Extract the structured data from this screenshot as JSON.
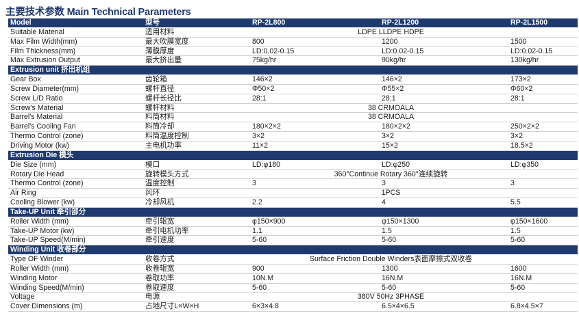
{
  "title": "主要技术参数 Main Technical Parameters",
  "colors": {
    "header_bg": "#1f3a6e",
    "title": "#1f3a6e"
  },
  "header": [
    "Model",
    "型号",
    "RP-2L800",
    "RP-2L1200",
    "RP-2L1500"
  ],
  "rows": [
    {
      "en": "Suitable Material",
      "cn": "适用材料",
      "merged": "LDPE LLDPE HDPE"
    },
    {
      "en": "Max Film Width(mm)",
      "cn": "最大吹膜宽度",
      "v": [
        "800",
        "1200",
        "1500"
      ]
    },
    {
      "en": "Film Thickness(mm)",
      "cn": "薄膜厚度",
      "v": [
        "LD:0.02-0.15",
        "LD:0.02-0.15",
        "LD:0.02-0.15"
      ]
    },
    {
      "en": "Max Extrusion Output",
      "cn": "最大挤出量",
      "v": [
        "75kg/hr",
        "90kg/hr",
        "130kg/hr"
      ]
    },
    {
      "section": "Extrusion unit   挤出机组"
    },
    {
      "en": "Gear Box",
      "cn": "齿轮箱",
      "v": [
        "146×2",
        "146×2",
        "173×2"
      ]
    },
    {
      "en": "Screw Diameter(mm)",
      "cn": "螺杆直径",
      "v": [
        "Φ50×2",
        "Φ55×2",
        "Φ60×2"
      ]
    },
    {
      "en": "Screw L/D Ratio",
      "cn": "螺杆长径比",
      "v": [
        "28:1",
        "28:1",
        "28:1"
      ]
    },
    {
      "en": "Screw's Material",
      "cn": "螺杆材料",
      "merged": "38 CRMOALA"
    },
    {
      "en": "Barrel's Material",
      "cn": "料筒材料",
      "merged": "38 CRMOALA"
    },
    {
      "en": "Barrel's Cooling Fan",
      "cn": "料筒冷却",
      "v": [
        "180×2×2",
        "180×2×2",
        "250×2×2"
      ]
    },
    {
      "en": "Thermo Control (zone)",
      "cn": "料筒温度控制",
      "v": [
        "3×2",
        "3×2",
        "3×2"
      ]
    },
    {
      "en": "Driving Motor (kw)",
      "cn": "主电机功率",
      "v": [
        "11×2",
        "15×2",
        "18.5×2"
      ]
    },
    {
      "section": "Extrusion Die    模头"
    },
    {
      "en": "Die Size (mm)",
      "cn": "模口",
      "v": [
        "LD:φ180",
        "LD:φ250",
        "LD:φ350"
      ]
    },
    {
      "en": "Rotary Die Head",
      "cn": "旋转模头方式",
      "merged": "360°Continue Rotary      360°连续旋转"
    },
    {
      "en": "Thermo Control (zone)",
      "cn": "温度控制",
      "v": [
        "3",
        "3",
        "3"
      ]
    },
    {
      "en": "Air Ring",
      "cn": "风环",
      "merged": "1PCS"
    },
    {
      "en": "Cooling Blower (kw)",
      "cn": "冷却风机",
      "v": [
        "2.2",
        "4",
        "5.5"
      ]
    },
    {
      "section": "Take-UP Unit    牵引部分"
    },
    {
      "en": "Roller Width (mm)",
      "cn": "牵引辊宽",
      "v": [
        "φ150×900",
        "φ150×1300",
        "φ150×1600"
      ]
    },
    {
      "en": "Take-UP Motor (kw)",
      "cn": "牵引电机功率",
      "v": [
        "1.1",
        "1.5",
        "1.5"
      ]
    },
    {
      "en": "Take-UP Speed(M/min)",
      "cn": "牵引速度",
      "v": [
        "5-60",
        "5-60",
        "5-60"
      ]
    },
    {
      "section": "Winding Unit    收卷部分"
    },
    {
      "en": "Type OF Winder",
      "cn": "收卷方式",
      "merged": "Surface Friction Double Winders表面摩擦式双收卷"
    },
    {
      "en": "Roller Width (mm)",
      "cn": "收卷辊宽",
      "v": [
        "900",
        "1300",
        "1600"
      ]
    },
    {
      "en": "Winding Motor",
      "cn": "卷取功率",
      "v": [
        "10N.M",
        "16N.M",
        "16N.M"
      ]
    },
    {
      "en": "Winding Speed(M/min)",
      "cn": "卷取速度",
      "v": [
        "5-60",
        "5-60",
        "5-60"
      ]
    },
    {
      "en": "Voltage",
      "cn": "电源",
      "merged": "380V 50Hz 3PHASE"
    },
    {
      "en": "Cover Dimensions (m)",
      "cn": "占地尺寸L×W×H",
      "v": [
        "6×3×4.8",
        "6.5×4×6.5",
        "6.8×4.5×7"
      ]
    }
  ]
}
